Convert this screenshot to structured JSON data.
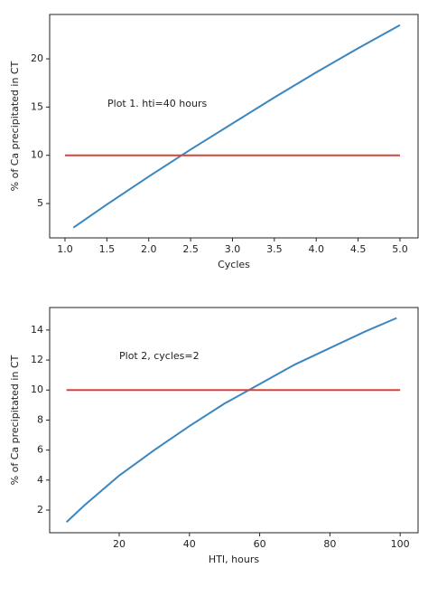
{
  "chart_data": [
    {
      "type": "line",
      "xlabel": "Cycles",
      "ylabel": "% of Ca precipitated in CT",
      "annotation": "Plot 1. hti=40 hours",
      "xlim": [
        0.817,
        5.216
      ],
      "ylim": [
        1.44,
        24.6
      ],
      "xticks": [
        {
          "value": 1,
          "label": "1.0"
        },
        1.5,
        {
          "value": 2,
          "label": "2.0"
        },
        2.5,
        {
          "value": 3,
          "label": "3.0"
        },
        3.5,
        {
          "value": 4,
          "label": "4.0"
        },
        4.5,
        {
          "value": 5,
          "label": "5.0"
        }
      ],
      "yticks": [
        5,
        10,
        15,
        20
      ],
      "series": [
        {
          "color": "#3a87c0",
          "x": [
            1.1,
            1.5,
            2,
            2.5,
            3,
            3.5,
            4,
            4.5,
            5
          ],
          "values": [
            2.5,
            4.9,
            7.8,
            10.6,
            13.3,
            16.0,
            18.6,
            21.1,
            23.5
          ]
        },
        {
          "color": "#d9423a",
          "x": [
            1,
            5
          ],
          "values": [
            10,
            10
          ]
        }
      ]
    },
    {
      "type": "line",
      "xlabel": "HTI, hours",
      "ylabel": "% of Ca precipitated in CT",
      "annotation": "Plot 2, cycles=2",
      "xlim": [
        0.2,
        105.1
      ],
      "ylim": [
        0.49,
        15.5
      ],
      "xticks": [
        20,
        40,
        60,
        80,
        100
      ],
      "yticks": [
        2,
        4,
        6,
        8,
        10,
        12,
        14
      ],
      "series": [
        {
          "color": "#3a87c0",
          "x": [
            5,
            10,
            20,
            30,
            40,
            50,
            60,
            70,
            80,
            90,
            99
          ],
          "values": [
            1.2,
            2.3,
            4.3,
            6.0,
            7.6,
            9.1,
            10.4,
            11.7,
            12.8,
            13.9,
            14.8
          ]
        },
        {
          "color": "#d9423a",
          "x": [
            5,
            100
          ],
          "values": [
            10,
            10
          ]
        }
      ]
    }
  ]
}
